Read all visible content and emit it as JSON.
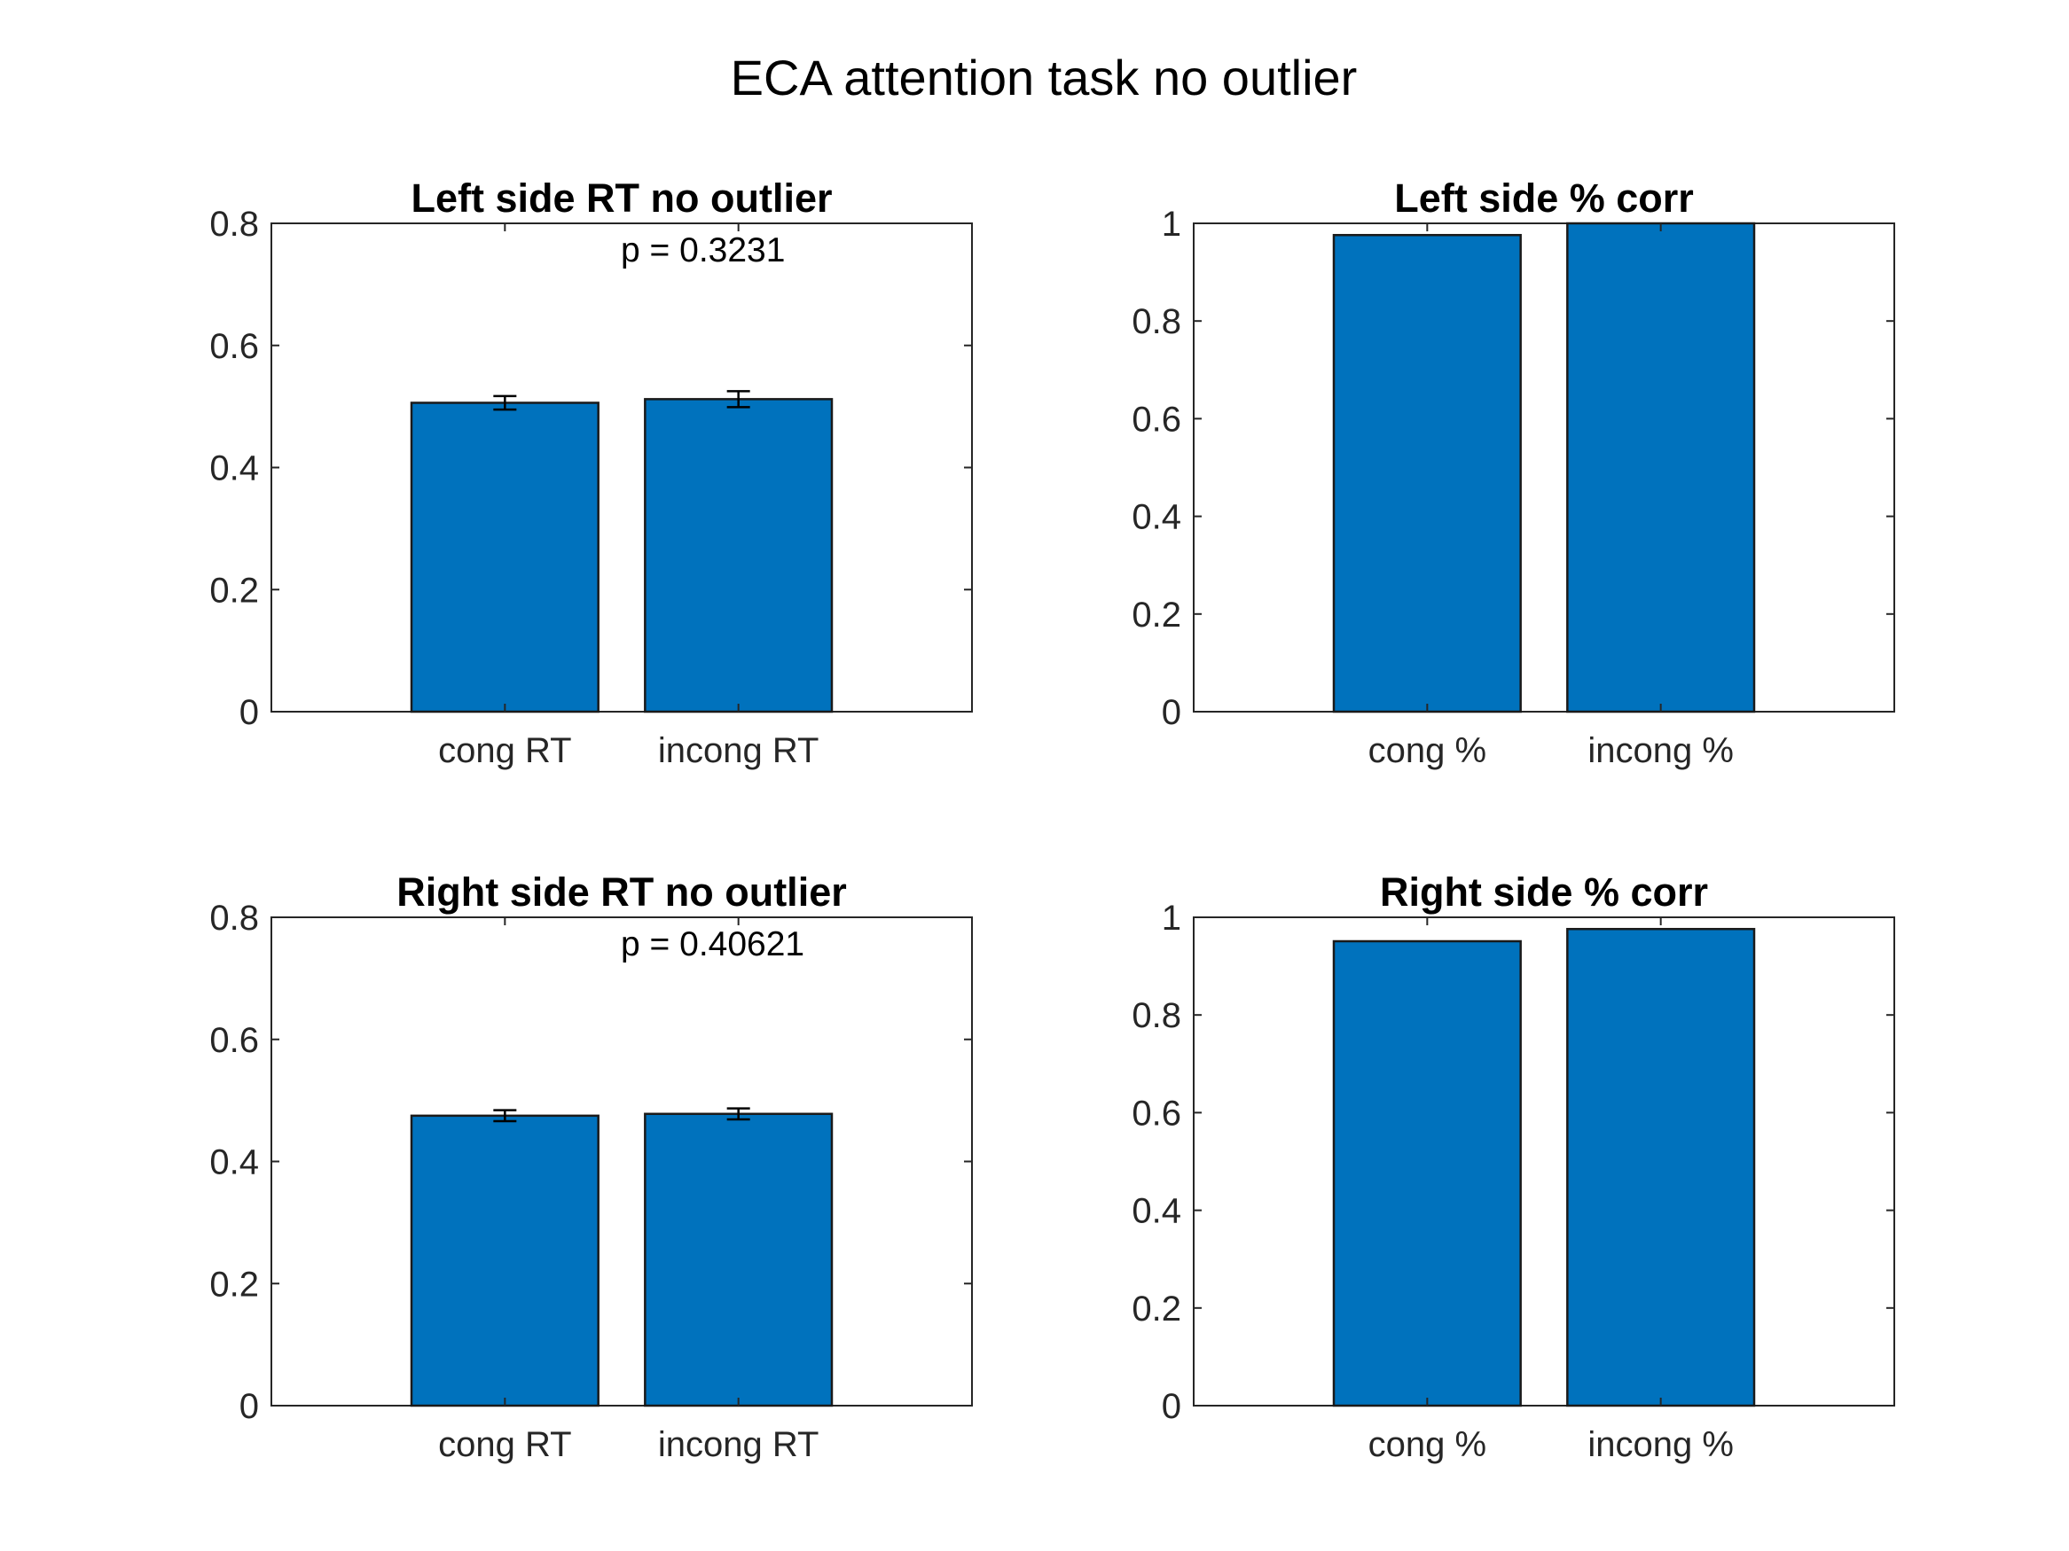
{
  "figure_title": "ECA attention task no outlier",
  "colors": {
    "bar": "#0072BD",
    "axes": "#262626"
  },
  "chart_data": [
    {
      "type": "bar",
      "title": "Left side RT no outlier",
      "categories": [
        "cong RT",
        "incong RT"
      ],
      "values": [
        0.506,
        0.512
      ],
      "errors": [
        0.011,
        0.013
      ],
      "ylim": [
        0,
        0.8
      ],
      "yticks": [
        "0",
        "0.2",
        "0.4",
        "0.6",
        "0.8"
      ],
      "annotation": "p = 0.3231",
      "xlabel": "",
      "ylabel": "",
      "grid": false
    },
    {
      "type": "bar",
      "title": "Left side % corr",
      "categories": [
        "cong %",
        "incong %"
      ],
      "values": [
        0.976,
        1.0
      ],
      "ylim": [
        0,
        1
      ],
      "yticks": [
        "0",
        "0.2",
        "0.4",
        "0.6",
        "0.8",
        "1"
      ],
      "xlabel": "",
      "ylabel": "",
      "grid": false
    },
    {
      "type": "bar",
      "title": "Right side RT no outlier",
      "categories": [
        "cong RT",
        "incong RT"
      ],
      "values": [
        0.475,
        0.478
      ],
      "errors": [
        0.009,
        0.009
      ],
      "ylim": [
        0,
        0.8
      ],
      "yticks": [
        "0",
        "0.2",
        "0.4",
        "0.6",
        "0.8"
      ],
      "annotation": "p = 0.40621",
      "xlabel": "",
      "ylabel": "",
      "grid": false
    },
    {
      "type": "bar",
      "title": "Right side % corr",
      "categories": [
        "cong %",
        "incong %"
      ],
      "values": [
        0.951,
        0.976
      ],
      "ylim": [
        0,
        1
      ],
      "yticks": [
        "0",
        "0.2",
        "0.4",
        "0.6",
        "0.8",
        "1"
      ],
      "xlabel": "",
      "ylabel": "",
      "grid": false
    }
  ]
}
